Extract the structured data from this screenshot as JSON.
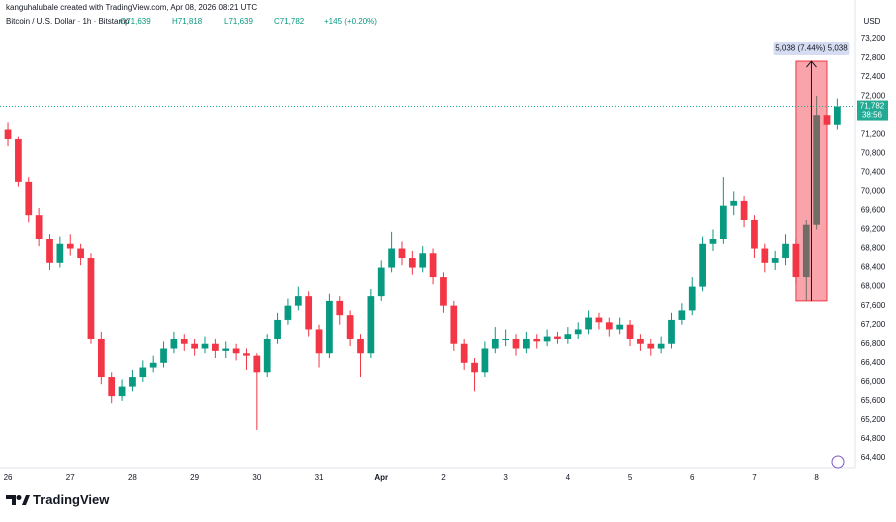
{
  "header": {
    "author_line": "kanguhalubale created with TradingView.com, Apr 08, 2026 08:21 UTC",
    "symbol": "Bitcoin / U.S. Dollar · 1h · Bitstamp",
    "open": "O71,639",
    "high": "H71,818",
    "low": "L71,639",
    "close": "C71,782",
    "change": "+145 (+0.20%)",
    "currency": "USD"
  },
  "logo": "TradingView",
  "chart_data": {
    "type": "candlestick",
    "x": [
      0,
      4,
      8,
      12,
      16,
      20,
      24,
      28,
      32,
      36,
      40,
      44,
      48,
      52,
      56,
      60,
      64,
      68,
      72,
      76,
      80,
      84,
      88,
      92,
      96,
      100,
      104,
      108,
      112,
      116,
      120,
      124,
      128,
      132,
      136,
      140,
      144,
      148,
      152,
      156,
      160,
      164,
      168,
      172,
      176,
      180,
      184,
      188,
      192,
      196,
      200,
      204,
      208,
      212,
      216,
      220,
      224,
      228,
      232,
      236,
      240,
      244,
      248,
      252,
      256,
      260,
      264,
      268,
      272,
      276,
      280,
      284,
      288,
      292,
      296,
      300,
      304,
      308,
      312,
      316,
      320
    ],
    "open": [
      71300,
      71100,
      70200,
      69500,
      69000,
      68500,
      68900,
      68800,
      68600,
      66900,
      66100,
      65700,
      65900,
      66100,
      66300,
      66400,
      66700,
      66900,
      66800,
      66700,
      66800,
      66650,
      66700,
      66600,
      66550,
      66200,
      66900,
      67300,
      67600,
      67800,
      67100,
      66600,
      67700,
      67400,
      66900,
      66600,
      67800,
      68400,
      68800,
      68600,
      68400,
      68700,
      68200,
      67600,
      66800,
      66400,
      66200,
      66700,
      66900,
      66900,
      66700,
      66900,
      66850,
      66950,
      66900,
      67000,
      67100,
      67350,
      67250,
      67100,
      67200,
      66900,
      66800,
      66700,
      66800,
      67300,
      67500,
      68000,
      68900,
      69000,
      69700,
      69800,
      69400,
      68800,
      68500,
      68600,
      68900,
      68200,
      69300,
      71600,
      71400
    ],
    "high": [
      71450,
      71150,
      70300,
      69650,
      69100,
      69050,
      69100,
      68900,
      68700,
      67050,
      66200,
      66050,
      66250,
      66450,
      66550,
      66850,
      67050,
      67000,
      66900,
      66950,
      66900,
      66850,
      66800,
      66700,
      66600,
      67000,
      67450,
      67750,
      68000,
      67900,
      67200,
      67850,
      67800,
      67500,
      67000,
      67950,
      68550,
      69150,
      68950,
      68750,
      68850,
      68800,
      68300,
      67700,
      66900,
      66500,
      66850,
      67150,
      67100,
      67000,
      67050,
      67000,
      67100,
      67050,
      67150,
      67250,
      67500,
      67450,
      67350,
      67350,
      67300,
      67000,
      66900,
      66950,
      67450,
      67650,
      68200,
      69050,
      69200,
      70300,
      70000,
      69900,
      69500,
      68900,
      68750,
      69100,
      69000,
      69400,
      72000,
      71900,
      71950
    ],
    "low": [
      70950,
      70100,
      69350,
      68850,
      68350,
      68400,
      68650,
      68450,
      66800,
      65950,
      65550,
      65600,
      65800,
      66000,
      66200,
      66300,
      66600,
      66650,
      66550,
      66600,
      66500,
      66500,
      66450,
      66250,
      64990,
      66100,
      66800,
      67200,
      67500,
      66950,
      66300,
      66500,
      67200,
      66750,
      66100,
      66500,
      67700,
      68300,
      68450,
      68250,
      68300,
      68050,
      67450,
      66650,
      66250,
      65800,
      66100,
      66600,
      66750,
      66550,
      66600,
      66700,
      66750,
      66800,
      66800,
      66900,
      67000,
      67100,
      66950,
      67000,
      66750,
      66650,
      66550,
      66600,
      66700,
      67200,
      67400,
      67900,
      68750,
      68900,
      69500,
      69250,
      68600,
      68300,
      68350,
      68450,
      68050,
      67700,
      69200,
      71200,
      71300
    ],
    "close": [
      71100,
      70200,
      69500,
      69000,
      68500,
      68900,
      68800,
      68600,
      66900,
      66100,
      65700,
      65900,
      66100,
      66300,
      66400,
      66700,
      66900,
      66800,
      66700,
      66800,
      66650,
      66700,
      66600,
      66550,
      66200,
      66900,
      67300,
      67600,
      67800,
      67100,
      66600,
      67700,
      67400,
      66900,
      66600,
      67800,
      68400,
      68800,
      68600,
      68400,
      68700,
      68200,
      67600,
      66800,
      66400,
      66200,
      66700,
      66900,
      66900,
      66700,
      66900,
      66850,
      66950,
      66900,
      67000,
      67100,
      67350,
      67250,
      67100,
      67200,
      66900,
      66800,
      66700,
      66800,
      67300,
      67500,
      68000,
      68900,
      69000,
      69700,
      69800,
      69400,
      68800,
      68500,
      68600,
      68900,
      68200,
      69300,
      71600,
      71400,
      71782
    ],
    "up_color": "#089981",
    "down_color": "#f23645",
    "xlim": [
      -3.1,
      326.8
    ],
    "xticks": [
      {
        "value": 0,
        "label": "26"
      },
      {
        "value": 24,
        "label": "27"
      },
      {
        "value": 48,
        "label": "28"
      },
      {
        "value": 72,
        "label": "29"
      },
      {
        "value": 96,
        "label": "30"
      },
      {
        "value": 120,
        "label": "31"
      },
      {
        "value": 144,
        "label": "Apr"
      },
      {
        "value": 168,
        "label": "2"
      },
      {
        "value": 192,
        "label": "3"
      },
      {
        "value": 216,
        "label": "4"
      },
      {
        "value": 240,
        "label": "5"
      },
      {
        "value": 264,
        "label": "6"
      },
      {
        "value": 288,
        "label": "7"
      },
      {
        "value": 312,
        "label": "8"
      }
    ],
    "ylim": [
      64190,
      74020
    ],
    "yticks": [
      {
        "value": 64400,
        "label": "64,400"
      },
      {
        "value": 64800,
        "label": "64,800"
      },
      {
        "value": 65200,
        "label": "65,200"
      },
      {
        "value": 65600,
        "label": "65,600"
      },
      {
        "value": 66000,
        "label": "66,000"
      },
      {
        "value": 66400,
        "label": "66,400"
      },
      {
        "value": 66800,
        "label": "66,800"
      },
      {
        "value": 67200,
        "label": "67,200"
      },
      {
        "value": 67600,
        "label": "67,600"
      },
      {
        "value": 68000,
        "label": "68,000"
      },
      {
        "value": 68400,
        "label": "68,400"
      },
      {
        "value": 68800,
        "label": "68,800"
      },
      {
        "value": 69200,
        "label": "69,200"
      },
      {
        "value": 69600,
        "label": "69,600"
      },
      {
        "value": 70000,
        "label": "70,000"
      },
      {
        "value": 70400,
        "label": "70,400"
      },
      {
        "value": 70800,
        "label": "70,800"
      },
      {
        "value": 71200,
        "label": "71,200"
      },
      {
        "value": 71600,
        "label": "71,600"
      },
      {
        "value": 72000,
        "label": "72,000"
      },
      {
        "value": 72400,
        "label": "72,400"
      },
      {
        "value": 72800,
        "label": "72,800"
      },
      {
        "value": 73200,
        "label": "73,200"
      }
    ],
    "grid": false,
    "last_price": {
      "value": 71782,
      "label": "71,782",
      "countdown": "38:56",
      "color": "#22ab94"
    },
    "measure": {
      "x_start": 304,
      "x_end": 316,
      "start_price": 67700,
      "end_price": 72738,
      "label": "5,038 (7.44%) 5,038",
      "color": "#f23645"
    }
  }
}
